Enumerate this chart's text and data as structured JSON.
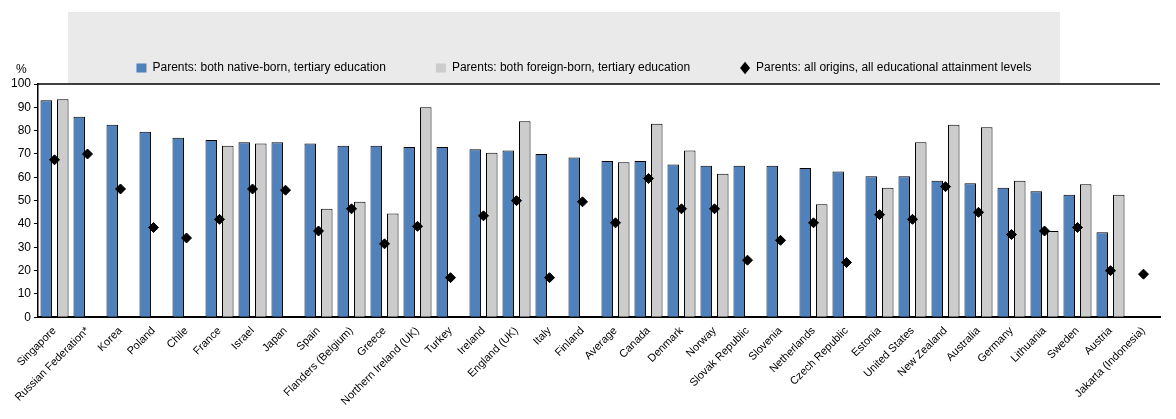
{
  "chart_data": {
    "type": "bar",
    "ylabel": "%",
    "categories": [
      "Singapore",
      "Russian Federation*",
      "Korea",
      "Poland",
      "Chile",
      "France",
      "Israel",
      "Japan",
      "Spain",
      "Flanders (Belgium)",
      "Greece",
      "Northern Ireland (UK)",
      "Turkey",
      "Ireland",
      "England (UK)",
      "Italy",
      "Finland",
      "Average",
      "Canada",
      "Denmark",
      "Norway",
      "Slovak Republic",
      "Slovenia",
      "Netherlands",
      "Czech Republic",
      "Estonia",
      "United States",
      "New Zealand",
      "Australia",
      "Germany",
      "Lithuania",
      "Sweden",
      "Austria",
      "Jakarta (Indonesia)"
    ],
    "series": [
      {
        "name": "Parents: both native-born, tertiary education",
        "color": "#4f81bd",
        "values": [
          93,
          86,
          82.5,
          79.5,
          77,
          76,
          75,
          75,
          74.5,
          73.5,
          73.5,
          73,
          73,
          72,
          71.5,
          70,
          68.5,
          67,
          67,
          65.5,
          65,
          65,
          65,
          64,
          62.5,
          60.5,
          60.5,
          58.5,
          57.5,
          55.5,
          54,
          52.5,
          36.5,
          null
        ]
      },
      {
        "name": "Parents: both foreign-born, tertiary education",
        "color": "#cccccc",
        "values": [
          93.5,
          null,
          null,
          null,
          null,
          73.5,
          74.5,
          null,
          46.5,
          49.5,
          44.5,
          90,
          null,
          70.5,
          84,
          null,
          null,
          66.5,
          83,
          71.5,
          61.5,
          null,
          null,
          48.5,
          null,
          55.5,
          75,
          82.5,
          81.5,
          58.5,
          37,
          57,
          52.5,
          null
        ]
      },
      {
        "name": "Parents: all origins, all educational attainment levels",
        "type": "scatter",
        "marker": "diamond",
        "color": "#000000",
        "values": [
          67.5,
          70,
          55,
          38.5,
          34,
          42,
          55,
          54.5,
          37,
          46.5,
          31.5,
          39,
          17,
          43.5,
          50,
          17,
          49.5,
          40.5,
          59.5,
          46.5,
          46.5,
          24.5,
          33,
          40.5,
          23.5,
          44,
          42,
          56,
          45,
          35.5,
          37,
          38.5,
          20,
          18.5
        ]
      }
    ],
    "ylim": [
      0,
      100
    ],
    "yticks": [
      0,
      10,
      20,
      30,
      40,
      50,
      60,
      70,
      80,
      90,
      100
    ],
    "grid": false,
    "legend": "top"
  }
}
